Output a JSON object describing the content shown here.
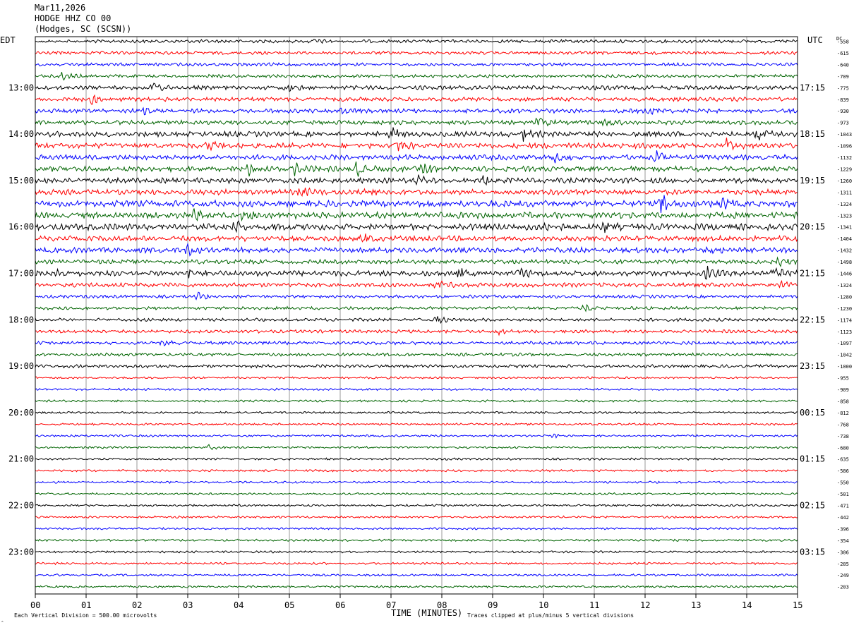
{
  "header": {
    "date": "Mar11,2026",
    "station": "HODGE HHZ CO 00",
    "location": "(Hodges, SC (SCSN))"
  },
  "chart_data": {
    "type": "line",
    "title": "Mar11,2026",
    "xlabel": "TIME (MINUTES)",
    "left_axis_label": "EDT",
    "right_axis_label": "UTC",
    "dc_label": "DC",
    "xlim": [
      0,
      15
    ],
    "x_tick_labels": [
      "00",
      "01",
      "02",
      "03",
      "04",
      "05",
      "06",
      "07",
      "08",
      "09",
      "10",
      "11",
      "12",
      "13",
      "14",
      "15"
    ],
    "edt_hour_labels": [
      "13:00",
      "14:00",
      "15:00",
      "16:00",
      "17:00",
      "18:00",
      "19:00",
      "20:00",
      "21:00",
      "22:00",
      "23:00"
    ],
    "utc_hour_labels": [
      "17:15",
      "18:15",
      "19:15",
      "20:15",
      "21:15",
      "22:15",
      "23:15",
      "00:15",
      "01:15",
      "02:15",
      "03:15"
    ],
    "trace_colors": [
      "#000000",
      "#ff0000",
      "#0000ff",
      "#006400"
    ],
    "dc_offsets": [
      "-558",
      "-615",
      "-640",
      "-709",
      "-775",
      "-839",
      "-930",
      "-973",
      "-1043",
      "-1096",
      "-1132",
      "-1229",
      "-1260",
      "-1311",
      "-1324",
      "-1323",
      "-1341",
      "-1404",
      "-1432",
      "-1498",
      "-1446",
      "-1324",
      "-1280",
      "-1230",
      "-1174",
      "-1123",
      "-1097",
      "-1042",
      "-1000",
      "-955",
      "-909",
      "-858",
      "-812",
      "-768",
      "-738",
      "-680",
      "-635",
      "-586",
      "-550",
      "-501",
      "-471",
      "-442",
      "-396",
      "-354",
      "-306",
      "-285",
      "-249",
      "-203"
    ],
    "trace_noise_level": [
      3,
      3,
      3,
      3,
      4,
      4,
      4,
      4,
      5,
      5,
      5,
      5,
      5,
      5,
      6,
      6,
      6,
      5,
      5,
      4,
      5,
      4,
      3,
      3,
      3,
      3,
      3,
      3,
      3,
      2,
      2,
      2,
      2,
      2,
      2,
      2,
      2,
      2,
      2,
      2,
      2,
      2,
      2,
      2,
      2,
      2,
      2,
      2
    ],
    "events": [
      {
        "trace": 0,
        "minute": 5.4,
        "amp": 5
      },
      {
        "trace": 3,
        "minute": 0.5,
        "amp": 7
      },
      {
        "trace": 4,
        "minute": 2.3,
        "amp": 12
      },
      {
        "trace": 4,
        "minute": 4.9,
        "amp": 9
      },
      {
        "trace": 5,
        "minute": 1.1,
        "amp": 8
      },
      {
        "trace": 6,
        "minute": 2.1,
        "amp": 6
      },
      {
        "trace": 6,
        "minute": 6.0,
        "amp": 6
      },
      {
        "trace": 6,
        "minute": 12.1,
        "amp": 7
      },
      {
        "trace": 7,
        "minute": 9.9,
        "amp": 10
      },
      {
        "trace": 7,
        "minute": 11.2,
        "amp": 8
      },
      {
        "trace": 8,
        "minute": 7.0,
        "amp": 12
      },
      {
        "trace": 8,
        "minute": 9.6,
        "amp": 10
      },
      {
        "trace": 8,
        "minute": 14.2,
        "amp": 9
      },
      {
        "trace": 9,
        "minute": 3.4,
        "amp": 12
      },
      {
        "trace": 9,
        "minute": 7.1,
        "amp": 14
      },
      {
        "trace": 9,
        "minute": 13.6,
        "amp": 10
      },
      {
        "trace": 10,
        "minute": 10.2,
        "amp": 10
      },
      {
        "trace": 10,
        "minute": 12.2,
        "amp": 9
      },
      {
        "trace": 11,
        "minute": 4.2,
        "amp": 10
      },
      {
        "trace": 11,
        "minute": 5.1,
        "amp": 10
      },
      {
        "trace": 11,
        "minute": 6.3,
        "amp": 14
      },
      {
        "trace": 11,
        "minute": 7.6,
        "amp": 11
      },
      {
        "trace": 12,
        "minute": 7.5,
        "amp": 8
      },
      {
        "trace": 12,
        "minute": 8.8,
        "amp": 8
      },
      {
        "trace": 13,
        "minute": 5.2,
        "amp": 8
      },
      {
        "trace": 13,
        "minute": 6.4,
        "amp": 8
      },
      {
        "trace": 14,
        "minute": 12.3,
        "amp": 18
      },
      {
        "trace": 14,
        "minute": 13.5,
        "amp": 10
      },
      {
        "trace": 15,
        "minute": 3.1,
        "amp": 10
      },
      {
        "trace": 15,
        "minute": 4.1,
        "amp": 8
      },
      {
        "trace": 16,
        "minute": 3.9,
        "amp": 11
      },
      {
        "trace": 16,
        "minute": 4.7,
        "amp": 8
      },
      {
        "trace": 16,
        "minute": 10.0,
        "amp": 10
      },
      {
        "trace": 16,
        "minute": 11.2,
        "amp": 9
      },
      {
        "trace": 17,
        "minute": 6.4,
        "amp": 9
      },
      {
        "trace": 18,
        "minute": 3.0,
        "amp": 8
      },
      {
        "trace": 18,
        "minute": 13.2,
        "amp": 10
      },
      {
        "trace": 19,
        "minute": 14.6,
        "amp": 8
      },
      {
        "trace": 20,
        "minute": 0.4,
        "amp": 8
      },
      {
        "trace": 20,
        "minute": 3.0,
        "amp": 8
      },
      {
        "trace": 20,
        "minute": 8.3,
        "amp": 10
      },
      {
        "trace": 20,
        "minute": 9.5,
        "amp": 9
      },
      {
        "trace": 20,
        "minute": 13.2,
        "amp": 12
      },
      {
        "trace": 20,
        "minute": 14.5,
        "amp": 11
      },
      {
        "trace": 21,
        "minute": 7.9,
        "amp": 7
      },
      {
        "trace": 21,
        "minute": 14.6,
        "amp": 9
      },
      {
        "trace": 22,
        "minute": 3.2,
        "amp": 7
      },
      {
        "trace": 23,
        "minute": 10.8,
        "amp": 6
      },
      {
        "trace": 24,
        "minute": 7.9,
        "amp": 8
      },
      {
        "trace": 25,
        "minute": 9.1,
        "amp": 6
      },
      {
        "trace": 26,
        "minute": 2.5,
        "amp": 5
      },
      {
        "trace": 35,
        "minute": 3.4,
        "amp": 5
      },
      {
        "trace": 34,
        "minute": 10.2,
        "amp": 3
      }
    ]
  },
  "footer": {
    "scale_note": "Each Vertical Division =  500.00 microvolts",
    "clip_note": "Traces clipped at plus/minus 5 vertical divisions",
    "corner_mark": "‸"
  }
}
